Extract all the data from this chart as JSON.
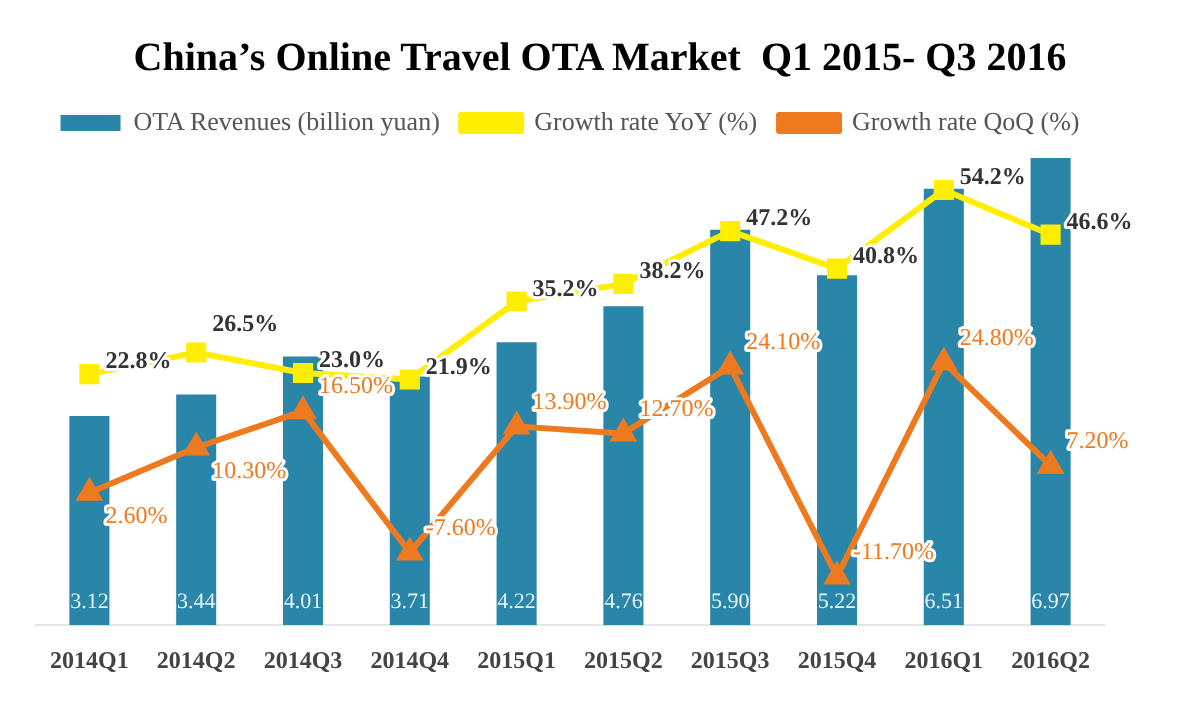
{
  "chart_data": {
    "type": "bar",
    "title": "China’s Online Travel OTA Market  Q1 2015- Q3 2016",
    "categories": [
      "2014Q1",
      "2014Q2",
      "2014Q3",
      "2014Q4",
      "2015Q1",
      "2015Q2",
      "2015Q3",
      "2015Q4",
      "2016Q1",
      "2016Q2"
    ],
    "series": [
      {
        "name": "OTA Revenues (billion yuan)",
        "color": "#2a86a8",
        "values": [
          3.12,
          3.44,
          4.01,
          3.71,
          4.22,
          4.76,
          5.9,
          5.22,
          6.51,
          6.97
        ],
        "value_labels": [
          "3.12",
          "3.44",
          "4.01",
          "3.71",
          "4.22",
          "4.76",
          "5.90",
          "5.22",
          "6.51",
          "6.97"
        ]
      },
      {
        "name": "Growth rate YoY (%)",
        "type": "line",
        "axis": "y2",
        "marker": "square",
        "color": "#ffee00",
        "values": [
          22.8,
          26.5,
          23.0,
          21.9,
          35.2,
          38.2,
          47.2,
          40.8,
          54.2,
          46.6
        ],
        "value_labels": [
          "22.8%",
          "26.5%",
          "23.0%",
          "21.9%",
          "35.2%",
          "38.2%",
          "47.2%",
          "40.8%",
          "54.2%",
          "46.6%"
        ]
      },
      {
        "name": "Growth rate QoQ (%)",
        "type": "line",
        "axis": "y2",
        "marker": "triangle",
        "color": "#ee7a1f",
        "values": [
          2.6,
          10.3,
          16.5,
          -7.6,
          13.9,
          12.7,
          24.1,
          -11.7,
          24.8,
          7.2
        ],
        "value_labels": [
          "2.60%",
          "10.30%",
          "16.50%",
          "-7.60%",
          "13.90%",
          "12.70%",
          "24.10%",
          "-11.70%",
          "24.80%",
          "7.20%"
        ]
      }
    ],
    "tick_labels": false,
    "legend": "top"
  }
}
